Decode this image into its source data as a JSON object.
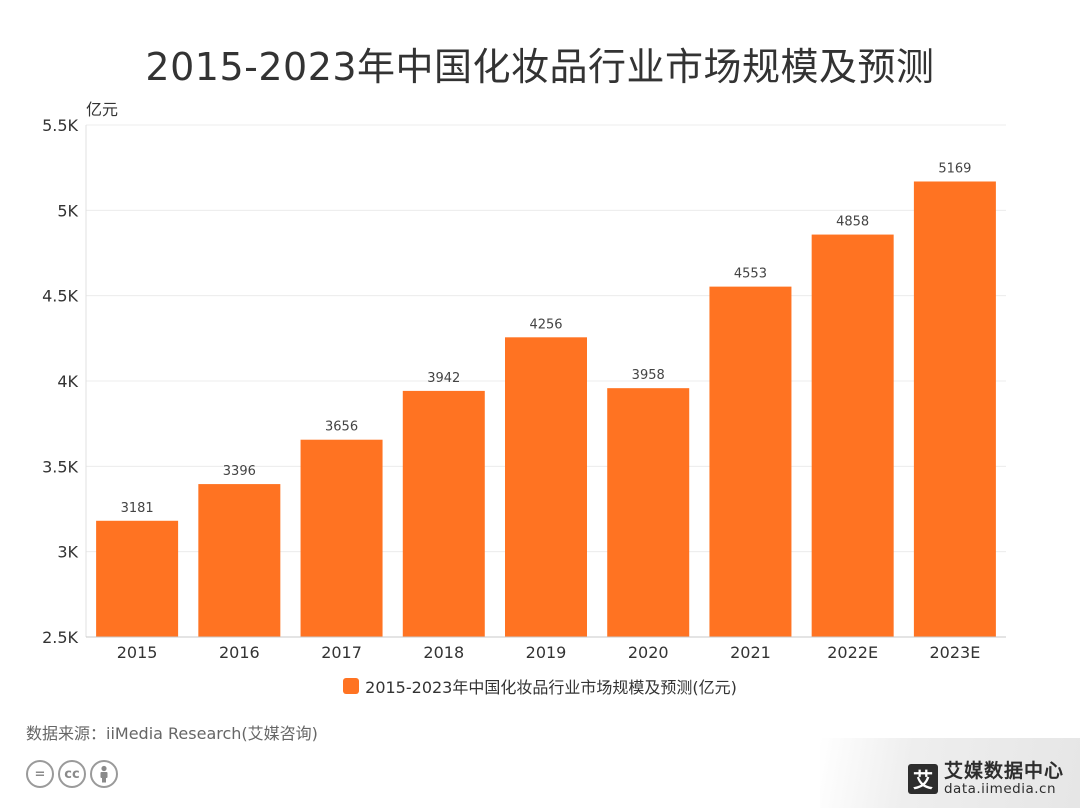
{
  "title": "2015-2023年中国化妆品行业市场规模及预测",
  "chart_data": {
    "type": "bar",
    "title": "2015-2023年中国化妆品行业市场规模及预测",
    "ylabel": "亿元",
    "xlabel": "",
    "ylim": [
      2500,
      5500
    ],
    "yticks": [
      2500,
      3000,
      3500,
      4000,
      4500,
      5000,
      5500
    ],
    "ytick_labels": [
      "2.5K",
      "3K",
      "3.5K",
      "4K",
      "4.5K",
      "5K",
      "5.5K"
    ],
    "categories": [
      "2015",
      "2016",
      "2017",
      "2018",
      "2019",
      "2020",
      "2021",
      "2022E",
      "2023E"
    ],
    "series": [
      {
        "name": "2015-2023年中国化妆品行业市场规模及预测(亿元)",
        "values": [
          3181,
          3396,
          3656,
          3942,
          4256,
          3958,
          4553,
          4858,
          5169
        ],
        "color": "#ff7322"
      }
    ],
    "legend": "bottom",
    "grid": true
  },
  "source": "数据来源：iiMedia Research(艾媒咨询)",
  "cc_icons": [
    "=",
    "cc",
    "person"
  ],
  "brand": {
    "logo_char": "艾",
    "name": "艾媒数据中心",
    "url": "data.iimedia.cn"
  }
}
